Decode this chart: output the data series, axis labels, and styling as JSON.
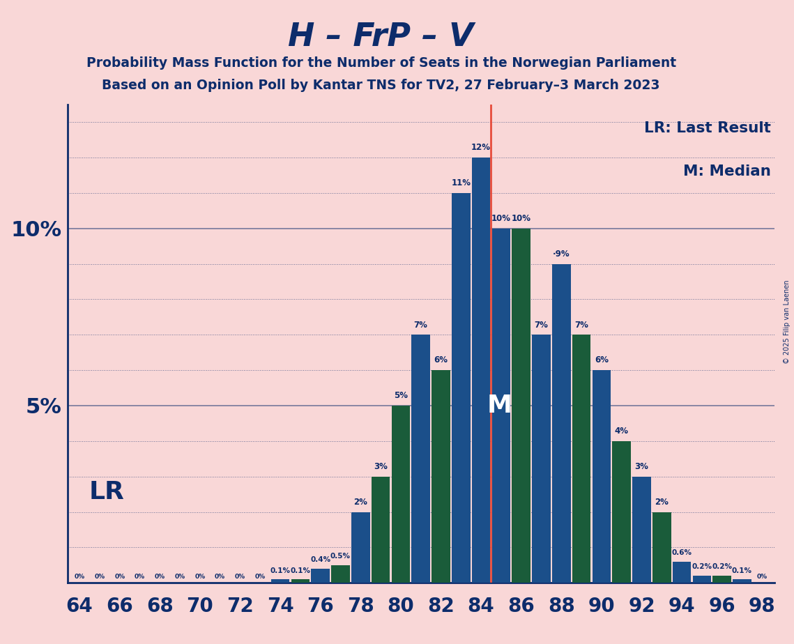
{
  "title_main": "H – FrP – V",
  "title_sub1": "Probability Mass Function for the Number of Seats in the Norwegian Parliament",
  "title_sub2": "Based on an Opinion Poll by Kantar TNS for TV2, 27 February–3 March 2023",
  "copyright": "© 2025 Filip van Laenen",
  "bar_seats": [
    64,
    65,
    66,
    67,
    68,
    69,
    70,
    71,
    72,
    73,
    74,
    75,
    76,
    77,
    78,
    79,
    80,
    81,
    82,
    83,
    84,
    85,
    86,
    87,
    88,
    89,
    90,
    91,
    92,
    93,
    94,
    95,
    96,
    97,
    98
  ],
  "bar_vals": [
    0.0,
    0.0,
    0.0,
    0.0,
    0.0,
    0.0,
    0.0,
    0.0,
    0.0,
    0.0,
    0.001,
    0.001,
    0.004,
    0.005,
    0.02,
    0.03,
    0.05,
    0.07,
    0.06,
    0.11,
    0.12,
    0.1,
    0.1,
    0.07,
    0.09,
    0.07,
    0.06,
    0.04,
    0.03,
    0.02,
    0.006,
    0.002,
    0.002,
    0.001,
    0.0
  ],
  "bar_labels": [
    "0%",
    "0%",
    "0%",
    "0%",
    "0%",
    "0%",
    "0%",
    "0%",
    "0%",
    "0%",
    "0.1%",
    "0.1%",
    "0.4%",
    "0.5%",
    "2%",
    "3%",
    "5%",
    "7%",
    "6%",
    "11%",
    "12%",
    "10%",
    "10%",
    "7%",
    "·9%",
    "7%",
    "6%",
    "4%",
    "3%",
    "2%",
    "0.6%",
    "0.2%",
    "0.2%",
    "0.1%",
    "0%"
  ],
  "bar_colors_list": [
    "blue",
    "blue",
    "blue",
    "blue",
    "blue",
    "blue",
    "blue",
    "blue",
    "blue",
    "blue",
    "blue",
    "green",
    "blue",
    "green",
    "blue",
    "green",
    "green",
    "blue",
    "green",
    "blue",
    "blue",
    "blue",
    "green",
    "blue",
    "blue",
    "green",
    "blue",
    "green",
    "blue",
    "green",
    "blue",
    "blue",
    "green",
    "blue",
    "blue"
  ],
  "last_result": 84,
  "median": 84,
  "bar_color_blue": "#1b4f8a",
  "bar_color_green": "#1a5c3a",
  "background_color": "#f9d7d7",
  "text_color": "#0d2c6b",
  "lr_line_color": "#e74c3c",
  "ylim": [
    0,
    0.135
  ],
  "figsize": [
    11.39,
    9.24
  ]
}
